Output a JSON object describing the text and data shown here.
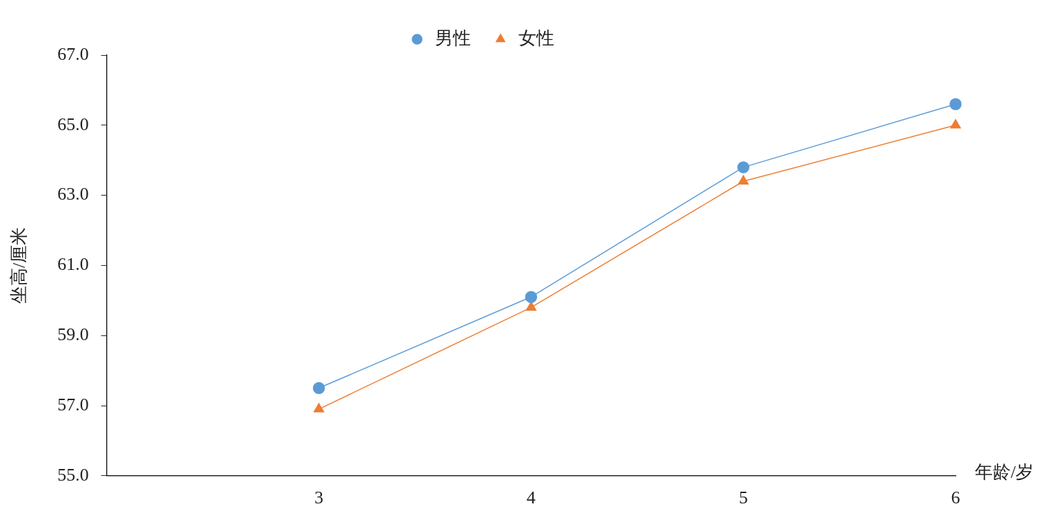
{
  "chart_data": {
    "type": "line",
    "xlabel": "年龄/岁",
    "ylabel": "坐高/厘米",
    "x": [
      3,
      4,
      5,
      6
    ],
    "xlim": [
      2,
      6
    ],
    "xticks": [
      3,
      4,
      5,
      6
    ],
    "ylim": [
      55,
      67
    ],
    "yticks": [
      {
        "value": 55,
        "label": "55.0"
      },
      {
        "value": 57,
        "label": "57.0"
      },
      {
        "value": 59,
        "label": "59.0"
      },
      {
        "value": 61,
        "label": "61.0"
      },
      {
        "value": 63,
        "label": "63.0"
      },
      {
        "value": 65,
        "label": "65.0"
      },
      {
        "value": 67,
        "label": "67.0"
      }
    ],
    "legend": "top",
    "line_style": "solid",
    "series": [
      {
        "name": "男性",
        "color": "#5b9bd5",
        "marker": "circle",
        "values": [
          57.5,
          60.1,
          63.8,
          65.6
        ]
      },
      {
        "name": "女性",
        "color": "#ed7d31",
        "marker": "triangle",
        "values": [
          56.9,
          59.8,
          63.4,
          65.0
        ]
      }
    ]
  }
}
